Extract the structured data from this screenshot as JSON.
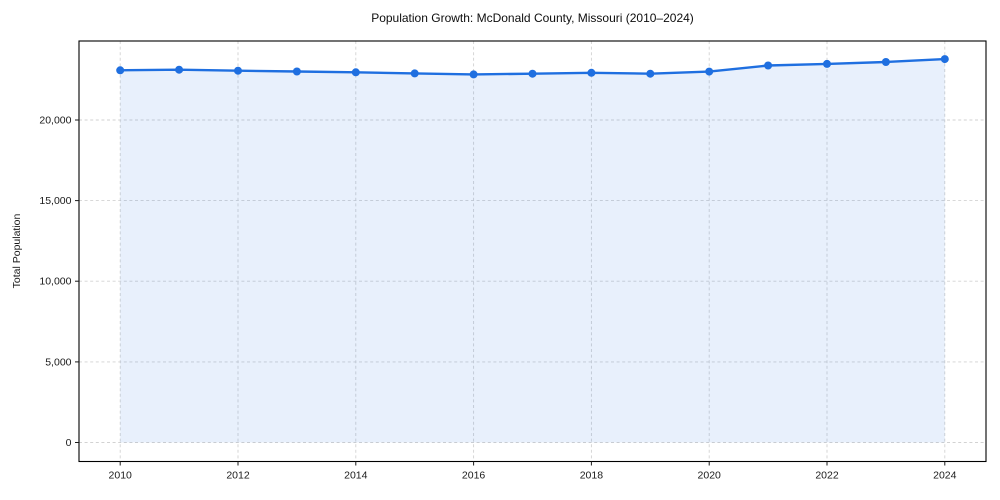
{
  "page": {
    "background_color": "#ffffff"
  },
  "chart_data": {
    "type": "area",
    "title": "Population Growth: McDonald County, Missouri (2010–2024)",
    "xlabel": "",
    "ylabel": "Total Population",
    "x": [
      2010,
      2011,
      2012,
      2013,
      2014,
      2015,
      2016,
      2017,
      2018,
      2019,
      2020,
      2021,
      2022,
      2023,
      2024
    ],
    "series": [
      {
        "name": "Total Population",
        "values": [
          23080,
          23120,
          23060,
          23010,
          22960,
          22890,
          22830,
          22870,
          22930,
          22870,
          23000,
          23380,
          23480,
          23600,
          23780
        ]
      }
    ],
    "x_ticks": [
      2010,
      2012,
      2014,
      2016,
      2018,
      2020,
      2022,
      2024
    ],
    "x_tick_labels": [
      "2010",
      "2012",
      "2014",
      "2016",
      "2018",
      "2020",
      "2022",
      "2024"
    ],
    "y_ticks": [
      0,
      5000,
      10000,
      15000,
      20000
    ],
    "y_tick_labels": [
      "0",
      "5,000",
      "10,000",
      "15,000",
      "20,000"
    ],
    "xlim": [
      2009.3,
      2024.7
    ],
    "ylim": [
      -1180,
      24900
    ],
    "grid": true,
    "grid_style": "dashed",
    "legend": "none",
    "line_color": "#1f6fe0",
    "fill_color": "rgba(31,111,224,0.10)",
    "marker": "circle",
    "fill_baseline": 0
  }
}
